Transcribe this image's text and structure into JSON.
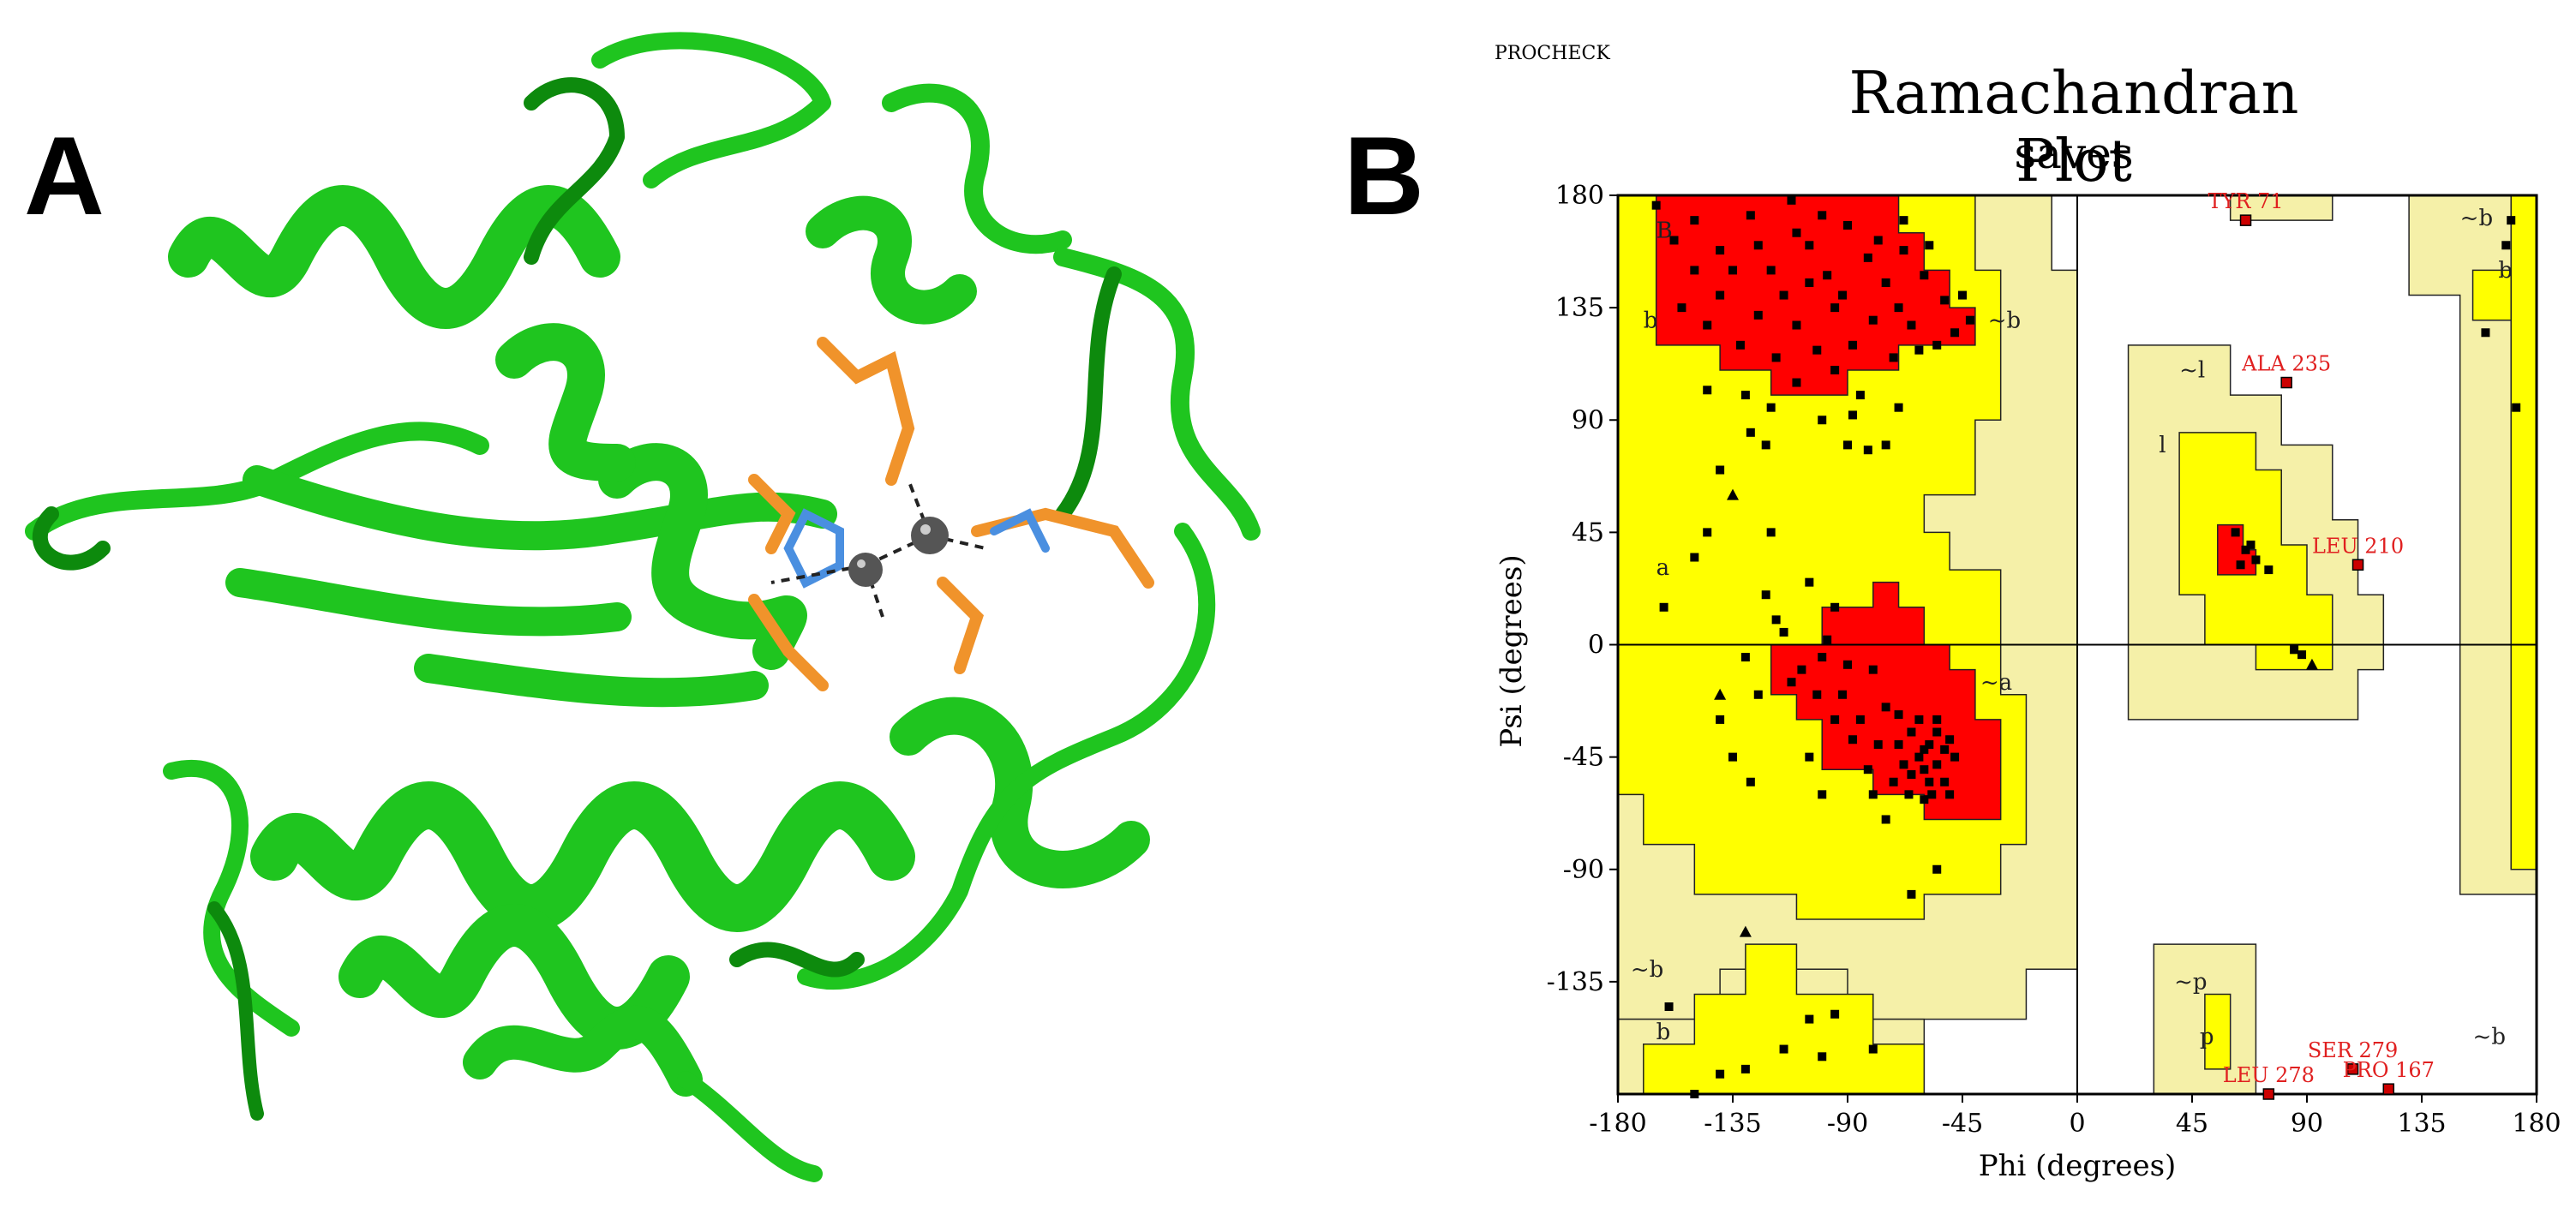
{
  "panels": {
    "a": "A",
    "b": "B"
  },
  "protein_image": {
    "ribbon_color": "#1fc51f",
    "ribbon_dark": "#0d8a0d",
    "ligand_color": "#f0932b",
    "metal_color": "#555555"
  },
  "chart_data": {
    "type": "scatter",
    "program_label": "PROCHECK",
    "title": "Ramachandran Plot",
    "subtitle": "saves",
    "xlabel": "Phi (degrees)",
    "ylabel": "Psi (degrees)",
    "xlim": [
      -180,
      180
    ],
    "ylim": [
      -180,
      180
    ],
    "xticks": [
      -180,
      -135,
      -90,
      -45,
      0,
      45,
      90,
      135,
      180
    ],
    "yticks": [
      -135,
      -90,
      -45,
      0,
      45,
      90,
      135,
      180
    ],
    "colors": {
      "core": "#ff0000",
      "allowed": "#ffff00",
      "generous": "#f5f0a8",
      "disallowed": "#ffffff",
      "point": "#000000",
      "outlier": "#cc0000"
    },
    "region_labels": [
      {
        "text": "B",
        "phi": -165,
        "psi": 163
      },
      {
        "text": "b",
        "phi": -170,
        "psi": 127
      },
      {
        "text": "~b",
        "phi": -35,
        "psi": 127
      },
      {
        "text": "a",
        "phi": -165,
        "psi": 28
      },
      {
        "text": "~a",
        "phi": -38,
        "psi": -18
      },
      {
        "text": "~l",
        "phi": 40,
        "psi": 107
      },
      {
        "text": "l",
        "phi": 32,
        "psi": 77
      },
      {
        "text": "~b",
        "phi": -175,
        "psi": -133
      },
      {
        "text": "b",
        "phi": -165,
        "psi": -158
      },
      {
        "text": "~p",
        "phi": 38,
        "psi": -138
      },
      {
        "text": "p",
        "phi": 48,
        "psi": -160
      },
      {
        "text": "~b",
        "phi": 150,
        "psi": 168
      },
      {
        "text": "b",
        "phi": 165,
        "psi": 147
      },
      {
        "text": "~b",
        "phi": 155,
        "psi": -160
      }
    ],
    "outliers": [
      {
        "label": "TYR 71",
        "phi": 66,
        "psi": 170
      },
      {
        "label": "ALA 235",
        "phi": 82,
        "psi": 105
      },
      {
        "label": "LEU 210",
        "phi": 110,
        "psi": 32
      },
      {
        "label": "SER 279",
        "phi": 108,
        "psi": -170
      },
      {
        "label": "PRO 167",
        "phi": 122,
        "psi": -178
      },
      {
        "label": "LEU 278",
        "phi": 75,
        "psi": -180
      }
    ],
    "points": [
      [
        -165,
        176
      ],
      [
        -158,
        162
      ],
      [
        -150,
        170
      ],
      [
        -140,
        158
      ],
      [
        -128,
        172
      ],
      [
        -120,
        150
      ],
      [
        -112,
        178
      ],
      [
        -105,
        160
      ],
      [
        -98,
        148
      ],
      [
        -90,
        168
      ],
      [
        -82,
        155
      ],
      [
        -75,
        145
      ],
      [
        -68,
        158
      ],
      [
        -60,
        148
      ],
      [
        -52,
        138
      ],
      [
        -48,
        125
      ],
      [
        -55,
        120
      ],
      [
        -65,
        128
      ],
      [
        -72,
        115
      ],
      [
        -80,
        130
      ],
      [
        -88,
        120
      ],
      [
        -95,
        135
      ],
      [
        -102,
        118
      ],
      [
        -110,
        128
      ],
      [
        -118,
        115
      ],
      [
        -125,
        132
      ],
      [
        -132,
        120
      ],
      [
        -140,
        140
      ],
      [
        -145,
        128
      ],
      [
        -130,
        100
      ],
      [
        -120,
        95
      ],
      [
        -110,
        105
      ],
      [
        -100,
        90
      ],
      [
        -95,
        110
      ],
      [
        -85,
        100
      ],
      [
        -150,
        150
      ],
      [
        -155,
        135
      ],
      [
        -135,
        150
      ],
      [
        -125,
        160
      ],
      [
        -115,
        140
      ],
      [
        -105,
        145
      ],
      [
        -92,
        140
      ],
      [
        -78,
        162
      ],
      [
        -70,
        135
      ],
      [
        -62,
        118
      ],
      [
        -58,
        160
      ],
      [
        -45,
        140
      ],
      [
        -42,
        130
      ],
      [
        -145,
        102
      ],
      [
        -128,
        85
      ],
      [
        -122,
        80
      ],
      [
        -90,
        80
      ],
      [
        -82,
        78
      ],
      [
        -75,
        80
      ],
      [
        -88,
        92
      ],
      [
        -70,
        95
      ],
      [
        -110,
        165
      ],
      [
        -100,
        172
      ],
      [
        -68,
        170
      ],
      [
        -140,
        70
      ],
      [
        -162,
        15
      ],
      [
        -122,
        20
      ],
      [
        -118,
        10
      ],
      [
        -105,
        25
      ],
      [
        -95,
        15
      ],
      [
        -130,
        -5
      ],
      [
        -112,
        -15
      ],
      [
        -100,
        -5
      ],
      [
        -92,
        -20
      ],
      [
        -85,
        -30
      ],
      [
        -80,
        -10
      ],
      [
        -75,
        -25
      ],
      [
        -70,
        -40
      ],
      [
        -65,
        -35
      ],
      [
        -62,
        -45
      ],
      [
        -60,
        -50
      ],
      [
        -58,
        -40
      ],
      [
        -55,
        -48
      ],
      [
        -52,
        -42
      ],
      [
        -50,
        -38
      ],
      [
        -48,
        -45
      ],
      [
        -62,
        -30
      ],
      [
        -58,
        -55
      ],
      [
        -68,
        -48
      ],
      [
        -72,
        -55
      ],
      [
        -78,
        -40
      ],
      [
        -82,
        -50
      ],
      [
        -55,
        -35
      ],
      [
        -60,
        -42
      ],
      [
        -65,
        -52
      ],
      [
        -57,
        -60
      ],
      [
        -52,
        -55
      ],
      [
        -70,
        -28
      ],
      [
        -88,
        -38
      ],
      [
        -95,
        -30
      ],
      [
        -102,
        -20
      ],
      [
        -108,
        -10
      ],
      [
        -115,
        5
      ],
      [
        -98,
        2
      ],
      [
        -90,
        -8
      ],
      [
        -125,
        -20
      ],
      [
        -135,
        -45
      ],
      [
        -128,
        -55
      ],
      [
        -140,
        -30
      ],
      [
        -150,
        35
      ],
      [
        -145,
        45
      ],
      [
        -120,
        45
      ],
      [
        -105,
        -45
      ],
      [
        -100,
        -60
      ],
      [
        -80,
        -60
      ],
      [
        -60,
        -62
      ],
      [
        -55,
        -30
      ],
      [
        -66,
        -60
      ],
      [
        -50,
        -60
      ],
      [
        -75,
        -70
      ],
      [
        -65,
        -100
      ],
      [
        -55,
        -90
      ],
      [
        62,
        45
      ],
      [
        66,
        38
      ],
      [
        70,
        34
      ],
      [
        75,
        30
      ],
      [
        68,
        40
      ],
      [
        64,
        32
      ],
      [
        85,
        -2
      ],
      [
        88,
        -4
      ],
      [
        -130,
        -170
      ],
      [
        -115,
        -162
      ],
      [
        -105,
        -150
      ],
      [
        -100,
        -165
      ],
      [
        -95,
        -148
      ],
      [
        -80,
        -162
      ],
      [
        -150,
        -180
      ],
      [
        -140,
        -172
      ],
      [
        -160,
        -145
      ],
      [
        160,
        125
      ],
      [
        170,
        170
      ],
      [
        168,
        160
      ],
      [
        172,
        95
      ]
    ],
    "triangles": [
      [
        -135,
        60
      ],
      [
        -140,
        -20
      ],
      [
        -130,
        -115
      ],
      [
        92,
        -8
      ]
    ]
  }
}
